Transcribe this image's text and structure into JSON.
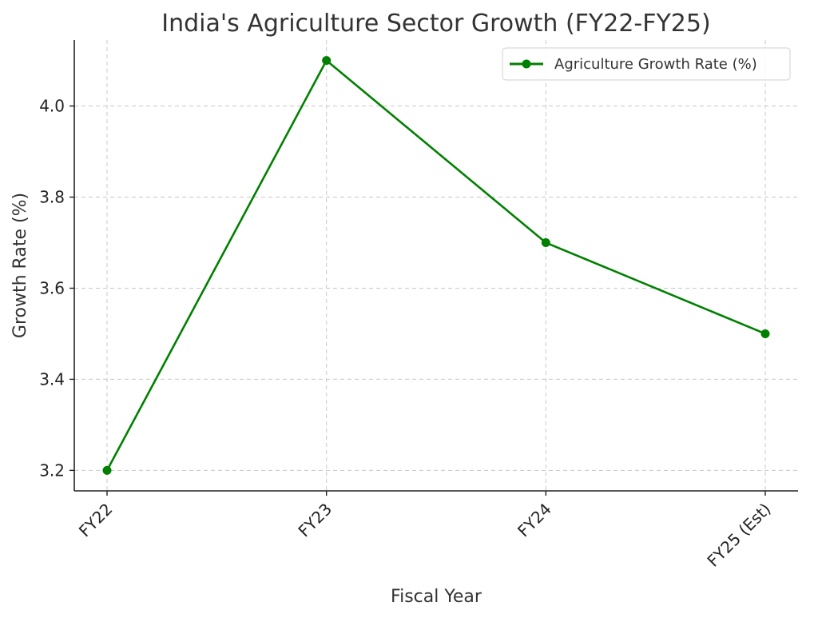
{
  "chart_data": {
    "type": "line",
    "title": "India's Agriculture Sector Growth (FY22-FY25)",
    "xlabel": "Fiscal Year",
    "ylabel": "Growth Rate (%)",
    "categories": [
      "FY22",
      "FY23",
      "FY24",
      "FY25 (Est)"
    ],
    "series": [
      {
        "name": "Agriculture Growth Rate (%)",
        "values": [
          3.2,
          4.1,
          3.7,
          3.5
        ],
        "color": "#008000"
      }
    ],
    "ylim": [
      3.155,
      4.145
    ],
    "yticks": [
      "3.2",
      "3.4",
      "3.6",
      "3.8",
      "4.0"
    ],
    "grid": true,
    "legend_position": "top-right"
  }
}
